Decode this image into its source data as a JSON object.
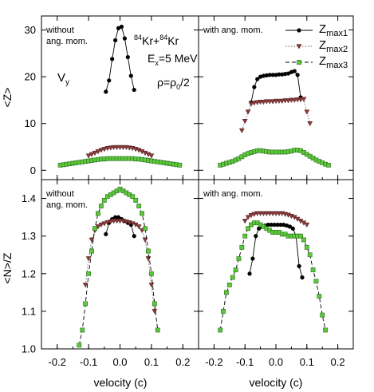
{
  "chart_data": {
    "type": "scatter",
    "layout": "2x2 panel grid",
    "x_axis": {
      "label": "velocity (c)",
      "lim": [
        -0.25,
        0.25
      ],
      "ticks": [
        -0.2,
        -0.1,
        0.0,
        0.1,
        0.2
      ],
      "tick_labels": [
        "-0.2",
        "-0.1",
        "0.0",
        "0.1",
        "0.2"
      ]
    },
    "y_axis_top": {
      "label": "<Z>",
      "lim": [
        -2,
        33
      ],
      "ticks": [
        0,
        10,
        20,
        30
      ],
      "tick_labels": [
        "0",
        "10",
        "20",
        "30"
      ]
    },
    "y_axis_bottom": {
      "label": "<N>/Z",
      "lim": [
        1.0,
        1.45
      ],
      "ticks": [
        1.0,
        1.1,
        1.2,
        1.3,
        1.4
      ],
      "tick_labels": [
        "1.0",
        "1.1",
        "1.2",
        "1.3",
        "1.4"
      ]
    },
    "annotations": {
      "reaction_a": "84",
      "reaction_b": "Kr+",
      "reaction_c": "84",
      "reaction_d": "Kr",
      "energy_a": "E",
      "energy_b": "x",
      "energy_c": "=5 MeV",
      "component_a": "V",
      "component_b": "y",
      "density_a": "ρ=ρ",
      "density_b": "0",
      "density_c": "/2"
    },
    "legend": {
      "placement": "top-right panel, top-right",
      "entries": [
        {
          "base": "Z",
          "sub": "max1",
          "marker": "circle",
          "fill": "#000000",
          "line": "solid"
        },
        {
          "base": "Z",
          "sub": "max2",
          "marker": "triangle-down",
          "fill": "#8b3a3a",
          "line": "dotted"
        },
        {
          "base": "Z",
          "sub": "max3",
          "marker": "square",
          "fill": "#5cc83c",
          "line": "dashed"
        }
      ]
    },
    "panels": [
      {
        "id": "top-left",
        "row": "top",
        "col": "left",
        "label_lines": [
          "without",
          "ang. mom."
        ],
        "series": [
          {
            "name": "Zmax1",
            "x": [
              -0.045,
              -0.035,
              -0.025,
              -0.015,
              -0.005,
              0.005,
              0.015,
              0.025,
              0.035,
              0.045
            ],
            "y": [
              16.8,
              19.2,
              23.8,
              27.8,
              30.4,
              30.7,
              28.2,
              24.2,
              20.2,
              17.2
            ]
          },
          {
            "name": "Zmax2",
            "x": [
              -0.1,
              -0.09,
              -0.08,
              -0.07,
              -0.06,
              -0.05,
              -0.04,
              -0.03,
              -0.02,
              -0.01,
              0.0,
              0.01,
              0.02,
              0.03,
              0.04,
              0.05,
              0.06,
              0.07,
              0.08,
              0.09,
              0.1
            ],
            "y": [
              3.1,
              3.4,
              3.7,
              4.0,
              4.3,
              4.5,
              4.7,
              4.8,
              4.9,
              4.9,
              4.9,
              4.9,
              4.9,
              4.8,
              4.7,
              4.5,
              4.3,
              4.0,
              3.7,
              3.4,
              3.1
            ]
          },
          {
            "name": "Zmax3",
            "x": [
              -0.19,
              -0.18,
              -0.17,
              -0.16,
              -0.15,
              -0.14,
              -0.13,
              -0.12,
              -0.11,
              -0.1,
              -0.09,
              -0.08,
              -0.07,
              -0.06,
              -0.05,
              -0.04,
              -0.03,
              -0.02,
              -0.01,
              0.0,
              0.01,
              0.02,
              0.03,
              0.04,
              0.05,
              0.06,
              0.07,
              0.08,
              0.09,
              0.1,
              0.11,
              0.12,
              0.13,
              0.14,
              0.15,
              0.16,
              0.17,
              0.18,
              0.19
            ],
            "y": [
              1.1,
              1.2,
              1.3,
              1.4,
              1.5,
              1.6,
              1.7,
              1.8,
              1.9,
              2.0,
              2.1,
              2.2,
              2.3,
              2.4,
              2.4,
              2.5,
              2.5,
              2.5,
              2.5,
              2.5,
              2.5,
              2.5,
              2.5,
              2.5,
              2.4,
              2.4,
              2.3,
              2.2,
              2.1,
              2.0,
              1.9,
              1.8,
              1.7,
              1.6,
              1.5,
              1.4,
              1.3,
              1.2,
              1.1
            ]
          }
        ]
      },
      {
        "id": "top-right",
        "row": "top",
        "col": "right",
        "label_lines": [
          "with ang. mom."
        ],
        "series": [
          {
            "name": "Zmax1",
            "x": [
              -0.08,
              -0.07,
              -0.06,
              -0.05,
              -0.04,
              -0.03,
              -0.02,
              -0.01,
              0.0,
              0.01,
              0.02,
              0.03,
              0.04,
              0.05,
              0.06,
              0.07,
              0.08
            ],
            "y": [
              14.5,
              17.8,
              19.5,
              20.0,
              20.2,
              20.3,
              20.4,
              20.4,
              20.4,
              20.5,
              20.5,
              20.6,
              20.7,
              21.0,
              21.2,
              20.4,
              15.6
            ]
          },
          {
            "name": "Zmax2",
            "x": [
              -0.11,
              -0.1,
              -0.09,
              -0.08,
              -0.07,
              -0.06,
              -0.05,
              -0.04,
              -0.03,
              -0.02,
              -0.01,
              0.0,
              0.01,
              0.02,
              0.03,
              0.04,
              0.05,
              0.06,
              0.07,
              0.08,
              0.09,
              0.1,
              0.11
            ],
            "y": [
              8.5,
              10.5,
              12.5,
              14.2,
              14.4,
              14.5,
              14.6,
              14.6,
              14.7,
              14.7,
              14.7,
              14.8,
              14.8,
              14.8,
              14.9,
              14.9,
              15.0,
              15.0,
              15.1,
              15.1,
              15.2,
              12.5,
              10.0
            ]
          },
          {
            "name": "Zmax3",
            "x": [
              -0.18,
              -0.17,
              -0.16,
              -0.15,
              -0.14,
              -0.13,
              -0.12,
              -0.11,
              -0.1,
              -0.09,
              -0.08,
              -0.07,
              -0.06,
              -0.05,
              -0.04,
              -0.03,
              -0.02,
              -0.01,
              0.0,
              0.01,
              0.02,
              0.03,
              0.04,
              0.05,
              0.06,
              0.07,
              0.08,
              0.09,
              0.1,
              0.11,
              0.12,
              0.13,
              0.14,
              0.15,
              0.16,
              0.17
            ],
            "y": [
              1.1,
              1.3,
              1.5,
              1.7,
              1.9,
              2.2,
              2.5,
              2.9,
              3.3,
              3.6,
              3.8,
              4.0,
              4.2,
              4.2,
              4.1,
              4.0,
              3.9,
              3.9,
              3.9,
              3.9,
              3.9,
              3.9,
              4.0,
              4.1,
              4.3,
              4.3,
              4.2,
              3.8,
              3.4,
              3.0,
              2.6,
              2.2,
              1.9,
              1.6,
              1.3,
              1.1
            ]
          }
        ]
      },
      {
        "id": "bottom-left",
        "row": "bottom",
        "col": "left",
        "label_lines": [
          "without",
          "ang. mom."
        ],
        "series": [
          {
            "name": "Zmax1",
            "x": [
              -0.045,
              -0.035,
              -0.025,
              -0.015,
              -0.005,
              0.005,
              0.015,
              0.025,
              0.035,
              0.045
            ],
            "y": [
              1.305,
              1.335,
              1.345,
              1.35,
              1.35,
              1.345,
              1.34,
              1.335,
              1.33,
              1.3
            ]
          },
          {
            "name": "Zmax2",
            "x": [
              -0.11,
              -0.1,
              -0.09,
              -0.08,
              -0.07,
              -0.06,
              -0.05,
              -0.04,
              -0.03,
              -0.02,
              -0.01,
              0.0,
              0.01,
              0.02,
              0.03,
              0.04,
              0.05,
              0.06,
              0.07,
              0.08,
              0.09,
              0.1,
              0.11
            ],
            "y": [
              1.17,
              1.24,
              1.29,
              1.315,
              1.325,
              1.33,
              1.333,
              1.336,
              1.338,
              1.34,
              1.34,
              1.34,
              1.34,
              1.338,
              1.336,
              1.333,
              1.33,
              1.325,
              1.315,
              1.29,
              1.24,
              1.17,
              1.1
            ]
          },
          {
            "name": "Zmax3",
            "x": [
              -0.13,
              -0.12,
              -0.11,
              -0.1,
              -0.09,
              -0.08,
              -0.07,
              -0.06,
              -0.05,
              -0.04,
              -0.03,
              -0.02,
              -0.01,
              0.0,
              0.01,
              0.02,
              0.03,
              0.04,
              0.05,
              0.06,
              0.07,
              0.08,
              0.09,
              0.1,
              0.11,
              0.12
            ],
            "y": [
              1.01,
              1.05,
              1.12,
              1.2,
              1.26,
              1.32,
              1.36,
              1.38,
              1.395,
              1.405,
              1.41,
              1.415,
              1.42,
              1.425,
              1.42,
              1.415,
              1.41,
              1.405,
              1.395,
              1.38,
              1.36,
              1.32,
              1.26,
              1.2,
              1.12,
              1.05
            ]
          }
        ]
      },
      {
        "id": "bottom-right",
        "row": "bottom",
        "col": "right",
        "label_lines": [
          "with ang. mom."
        ],
        "series": [
          {
            "name": "Zmax1",
            "x": [
              -0.085,
              -0.075,
              -0.065,
              -0.055,
              -0.045,
              -0.035,
              -0.025,
              -0.015,
              -0.005,
              0.005,
              0.015,
              0.025,
              0.035,
              0.045,
              0.055,
              0.065,
              0.075,
              0.085
            ],
            "y": [
              1.2,
              1.24,
              1.3,
              1.32,
              1.325,
              1.328,
              1.33,
              1.33,
              1.33,
              1.33,
              1.33,
              1.33,
              1.328,
              1.325,
              1.32,
              1.3,
              1.22,
              1.19
            ]
          },
          {
            "name": "Zmax2",
            "x": [
              -0.1,
              -0.09,
              -0.08,
              -0.07,
              -0.06,
              -0.05,
              -0.04,
              -0.03,
              -0.02,
              -0.01,
              0.0,
              0.01,
              0.02,
              0.03,
              0.04,
              0.05,
              0.06,
              0.07,
              0.08,
              0.09,
              0.1
            ],
            "y": [
              1.34,
              1.35,
              1.355,
              1.358,
              1.36,
              1.36,
              1.36,
              1.36,
              1.36,
              1.36,
              1.36,
              1.36,
              1.36,
              1.358,
              1.356,
              1.353,
              1.35,
              1.345,
              1.34,
              1.335,
              1.33
            ]
          },
          {
            "name": "Zmax3",
            "x": [
              -0.18,
              -0.17,
              -0.16,
              -0.15,
              -0.14,
              -0.13,
              -0.12,
              -0.11,
              -0.1,
              -0.09,
              -0.08,
              -0.07,
              -0.06,
              -0.05,
              -0.04,
              -0.03,
              -0.02,
              -0.01,
              0.0,
              0.01,
              0.02,
              0.03,
              0.04,
              0.05,
              0.06,
              0.07,
              0.08,
              0.09,
              0.1,
              0.11,
              0.12,
              0.13,
              0.14,
              0.15,
              0.16
            ],
            "y": [
              1.05,
              1.1,
              1.15,
              1.17,
              1.19,
              1.21,
              1.24,
              1.27,
              1.3,
              1.32,
              1.33,
              1.335,
              1.335,
              1.33,
              1.325,
              1.32,
              1.315,
              1.31,
              1.31,
              1.31,
              1.305,
              1.305,
              1.3,
              1.3,
              1.3,
              1.3,
              1.3,
              1.29,
              1.27,
              1.25,
              1.21,
              1.18,
              1.14,
              1.09,
              1.05
            ]
          }
        ]
      }
    ]
  }
}
